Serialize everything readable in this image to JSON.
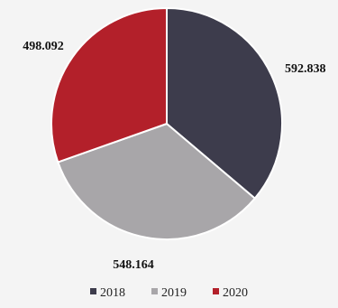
{
  "chart_data": {
    "type": "pie",
    "categories": [
      "2018",
      "2019",
      "2020"
    ],
    "values": [
      592.838,
      548.164,
      498.092
    ],
    "value_labels": [
      "592.838",
      "548.164",
      "498.092"
    ],
    "colors": [
      "#3d3c4c",
      "#a8a6a9",
      "#b3202a"
    ],
    "start_angle_deg": 0,
    "direction": "clockwise",
    "legend": {
      "position": "bottom",
      "entries": [
        "2018",
        "2019",
        "2020"
      ]
    },
    "title": ""
  }
}
